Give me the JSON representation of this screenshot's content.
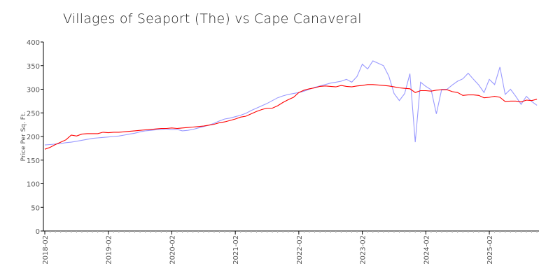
{
  "chart_data": {
    "type": "line",
    "title": "Villages of Seaport (The) vs Cape Canaveral",
    "xlabel": "",
    "ylabel": "Price Per Sq. Ft.",
    "ylim": [
      0,
      400
    ],
    "yticks": [
      0,
      50,
      100,
      150,
      200,
      250,
      300,
      350,
      400
    ],
    "x_start": "2018-02",
    "x_end": "2025-11",
    "xtick_labels": [
      "2018-02",
      "2019-02",
      "2020-02",
      "2021-02",
      "2022-02",
      "2023-02",
      "2024-02",
      "2025-02"
    ],
    "grid": false,
    "legend": "none",
    "series": [
      {
        "color": "#ff0000",
        "values": [
          173,
          177,
          183,
          188,
          193,
          203,
          201,
          205,
          206,
          206,
          206,
          209,
          208,
          209,
          209,
          210,
          211,
          212,
          213,
          214,
          215,
          216,
          217,
          217,
          218,
          217,
          218,
          219,
          220,
          221,
          222,
          224,
          226,
          229,
          231,
          234,
          237,
          241,
          243,
          248,
          253,
          257,
          260,
          260,
          265,
          272,
          278,
          283,
          293,
          298,
          301,
          303,
          306,
          307,
          306,
          305,
          308,
          306,
          305,
          307,
          308,
          310,
          310,
          309,
          308,
          307,
          305,
          303,
          302,
          301,
          293,
          297,
          297,
          296,
          298,
          299,
          299,
          295,
          293,
          287,
          288,
          288,
          287,
          282,
          283,
          285,
          283,
          274,
          275,
          275,
          273,
          277,
          276,
          279
        ]
      },
      {
        "color": "#9999ff",
        "values": [
          182,
          183,
          184,
          185,
          187,
          188,
          190,
          192,
          194,
          196,
          197,
          198,
          199,
          200,
          201,
          203,
          205,
          207,
          210,
          212,
          213,
          214,
          215,
          216,
          214,
          215,
          212,
          213,
          215,
          218,
          221,
          224,
          228,
          233,
          237,
          239,
          242,
          245,
          249,
          255,
          260,
          265,
          270,
          276,
          282,
          286,
          289,
          291,
          293,
          296,
          300,
          304,
          307,
          310,
          313,
          315,
          317,
          321,
          315,
          327,
          353,
          343,
          360,
          355,
          350,
          328,
          291,
          276,
          291,
          333,
          188,
          315,
          306,
          299,
          248,
          300,
          300,
          309,
          317,
          322,
          334,
          321,
          309,
          293,
          321,
          310,
          347,
          289,
          300,
          285,
          268,
          285,
          274,
          266
        ]
      }
    ]
  }
}
